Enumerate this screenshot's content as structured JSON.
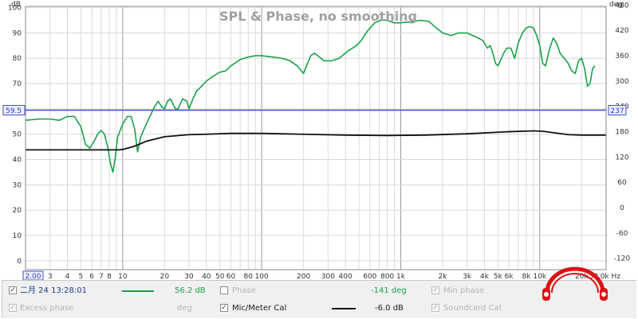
{
  "chart_data": {
    "type": "line",
    "title": "SPL & Phase, no smoothing",
    "x_scale": "log",
    "xlim": [
      2,
      30000
    ],
    "x_ticks": [
      {
        "v": 2,
        "label": "2.00"
      },
      {
        "v": 3,
        "label": "3"
      },
      {
        "v": 4,
        "label": "4"
      },
      {
        "v": 5,
        "label": "5"
      },
      {
        "v": 6,
        "label": "6"
      },
      {
        "v": 7,
        "label": "7"
      },
      {
        "v": 8,
        "label": "8"
      },
      {
        "v": 10,
        "label": "10"
      },
      {
        "v": 20,
        "label": "20"
      },
      {
        "v": 30,
        "label": "30"
      },
      {
        "v": 40,
        "label": "40"
      },
      {
        "v": 50,
        "label": "50"
      },
      {
        "v": 60,
        "label": "60"
      },
      {
        "v": 80,
        "label": "80"
      },
      {
        "v": 100,
        "label": "100"
      },
      {
        "v": 200,
        "label": "200"
      },
      {
        "v": 300,
        "label": "300"
      },
      {
        "v": 400,
        "label": "400"
      },
      {
        "v": 600,
        "label": "600"
      },
      {
        "v": 800,
        "label": "800"
      },
      {
        "v": 1000,
        "label": "1k"
      },
      {
        "v": 2000,
        "label": "2k"
      },
      {
        "v": 3000,
        "label": "3k"
      },
      {
        "v": 4000,
        "label": "4k"
      },
      {
        "v": 5000,
        "label": "5k"
      },
      {
        "v": 6000,
        "label": "6k"
      },
      {
        "v": 8000,
        "label": "8k"
      },
      {
        "v": 10000,
        "label": "10k"
      },
      {
        "v": 20000,
        "label": "20k"
      },
      {
        "v": 30000,
        "label": "30.0k Hz"
      }
    ],
    "y_left": {
      "unit": "dB",
      "lim": [
        -3.5,
        100.5
      ],
      "ticks": [
        0,
        10,
        20,
        30,
        40,
        50,
        60,
        70,
        80,
        90,
        100
      ],
      "marker": {
        "v": 59.5,
        "label": "59.5"
      }
    },
    "y_right": {
      "unit": "deg",
      "lim": [
        -147,
        477
      ],
      "ticks": [
        -120,
        -60,
        0,
        60,
        120,
        180,
        240,
        300,
        360,
        420,
        480
      ],
      "marker": {
        "v": 237,
        "label": "237"
      }
    },
    "grid": true,
    "series": [
      {
        "axis": "left",
        "color": "#1aa04a",
        "points": [
          [
            2,
            55.5
          ],
          [
            2.5,
            56
          ],
          [
            3,
            56
          ],
          [
            3.5,
            55.5
          ],
          [
            4,
            57
          ],
          [
            4.5,
            57
          ],
          [
            5,
            53
          ],
          [
            5.4,
            46
          ],
          [
            5.8,
            44.5
          ],
          [
            6.2,
            47
          ],
          [
            6.6,
            50
          ],
          [
            7,
            51.5
          ],
          [
            7.4,
            50
          ],
          [
            7.8,
            45
          ],
          [
            8.2,
            38
          ],
          [
            8.5,
            35
          ],
          [
            8.8,
            40
          ],
          [
            9.2,
            49
          ],
          [
            10,
            54
          ],
          [
            10.8,
            57
          ],
          [
            11.5,
            57
          ],
          [
            12.2,
            52
          ],
          [
            12.8,
            43
          ],
          [
            13.5,
            49
          ],
          [
            14.5,
            53
          ],
          [
            16,
            58
          ],
          [
            17,
            61
          ],
          [
            18,
            63
          ],
          [
            19,
            61
          ],
          [
            20,
            60
          ],
          [
            21,
            63
          ],
          [
            22,
            64
          ],
          [
            24,
            60
          ],
          [
            25,
            60
          ],
          [
            27,
            64
          ],
          [
            29,
            63
          ],
          [
            30,
            60
          ],
          [
            32,
            64
          ],
          [
            34,
            67
          ],
          [
            37,
            69
          ],
          [
            40,
            71
          ],
          [
            45,
            73
          ],
          [
            50,
            74.5
          ],
          [
            55,
            75
          ],
          [
            60,
            77
          ],
          [
            70,
            79.5
          ],
          [
            80,
            80.5
          ],
          [
            90,
            81
          ],
          [
            100,
            81
          ],
          [
            120,
            80.5
          ],
          [
            140,
            80
          ],
          [
            160,
            79
          ],
          [
            180,
            77
          ],
          [
            200,
            74
          ],
          [
            210,
            77
          ],
          [
            225,
            81
          ],
          [
            240,
            82
          ],
          [
            260,
            80.5
          ],
          [
            280,
            79
          ],
          [
            320,
            79
          ],
          [
            360,
            80
          ],
          [
            420,
            83
          ],
          [
            480,
            85
          ],
          [
            520,
            87
          ],
          [
            580,
            91
          ],
          [
            650,
            94
          ],
          [
            720,
            95
          ],
          [
            800,
            95
          ],
          [
            900,
            94
          ],
          [
            1000,
            94
          ],
          [
            1200,
            94.5
          ],
          [
            1400,
            95
          ],
          [
            1600,
            94.5
          ],
          [
            1800,
            92
          ],
          [
            2000,
            90
          ],
          [
            2300,
            89
          ],
          [
            2600,
            90
          ],
          [
            3000,
            90
          ],
          [
            3300,
            89
          ],
          [
            3600,
            88
          ],
          [
            3900,
            87
          ],
          [
            4200,
            84
          ],
          [
            4400,
            85
          ],
          [
            4600,
            82
          ],
          [
            4800,
            78
          ],
          [
            5000,
            77
          ],
          [
            5200,
            79
          ],
          [
            5500,
            82
          ],
          [
            5800,
            84
          ],
          [
            6200,
            84
          ],
          [
            6600,
            80
          ],
          [
            7000,
            86
          ],
          [
            7500,
            90
          ],
          [
            8000,
            92
          ],
          [
            8500,
            92.5
          ],
          [
            9000,
            92
          ],
          [
            9500,
            89
          ],
          [
            10000,
            85
          ],
          [
            10500,
            78
          ],
          [
            11000,
            77
          ],
          [
            11800,
            84
          ],
          [
            12500,
            88
          ],
          [
            13200,
            86
          ],
          [
            14000,
            82
          ],
          [
            15000,
            80
          ],
          [
            16000,
            78
          ],
          [
            17000,
            75
          ],
          [
            18000,
            74
          ],
          [
            19000,
            79
          ],
          [
            20000,
            80
          ],
          [
            21000,
            76
          ],
          [
            22000,
            69
          ],
          [
            23000,
            70
          ],
          [
            24000,
            76
          ],
          [
            25000,
            77
          ]
        ]
      },
      {
        "axis": "right",
        "color": "#111111",
        "points": [
          [
            2,
            137
          ],
          [
            9.5,
            137
          ],
          [
            10,
            138
          ],
          [
            12,
            145
          ],
          [
            15,
            158
          ],
          [
            20,
            168
          ],
          [
            30,
            173
          ],
          [
            40,
            174
          ],
          [
            60,
            176
          ],
          [
            100,
            176
          ],
          [
            200,
            174
          ],
          [
            400,
            172
          ],
          [
            800,
            171
          ],
          [
            1500,
            172
          ],
          [
            3000,
            175
          ],
          [
            6000,
            180
          ],
          [
            9000,
            182
          ],
          [
            10500,
            181
          ],
          [
            13000,
            177
          ],
          [
            16000,
            173
          ],
          [
            20000,
            172
          ],
          [
            30000,
            172
          ]
        ]
      }
    ]
  },
  "legend": {
    "row1": {
      "measurement": "二月 24 13:28:01",
      "spl_value": "56.2 dB",
      "phase_label": "Phase",
      "phase_value": "-141 deg",
      "min_phase_label": "Min phase"
    },
    "row2": {
      "excess_phase_label": "Excess phase",
      "excess_phase_unit": "deg",
      "cal_label": "Mic/Meter Cal",
      "cal_value": "-6.0 dB",
      "soundcard_label": "Soundcard Cal"
    },
    "check_mark": "✓",
    "colors": {
      "spl": "#1aa04a",
      "cal": "#111111",
      "logo": "#dd1111"
    }
  }
}
